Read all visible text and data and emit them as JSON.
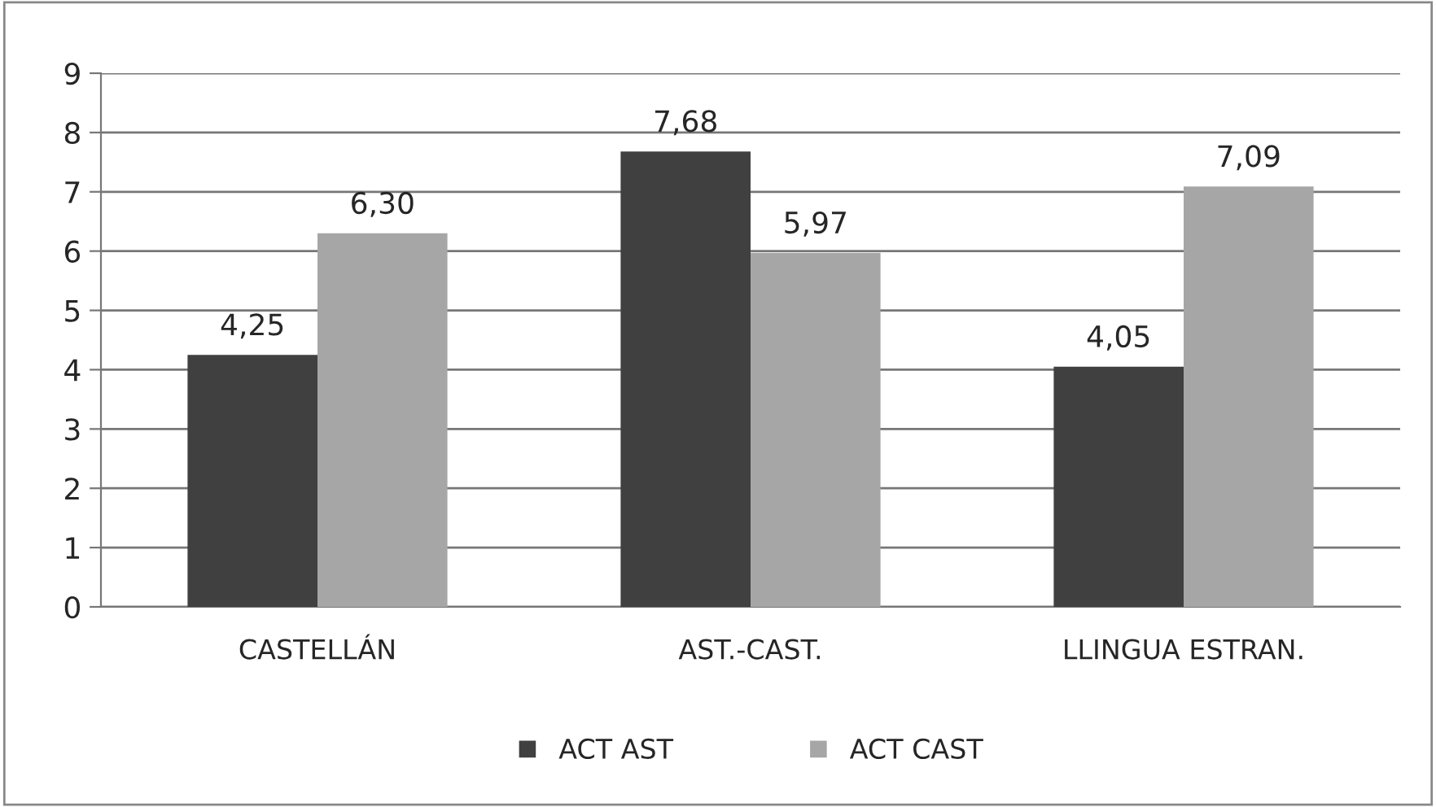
{
  "chart_data": {
    "type": "bar",
    "categories": [
      "CASTELLÁN",
      "AST.-CAST.",
      "LLINGUA ESTRAN."
    ],
    "series": [
      {
        "name": "ACT AST",
        "color": "#404040",
        "values": [
          4.25,
          7.68,
          4.05
        ],
        "value_labels": [
          "4,25",
          "7,68",
          "4,05"
        ]
      },
      {
        "name": "ACT CAST",
        "color": "#a6a6a6",
        "values": [
          6.3,
          5.97,
          7.09
        ],
        "value_labels": [
          "6,30",
          "5,97",
          "7,09"
        ]
      }
    ],
    "ylim": [
      0,
      9
    ],
    "yticks": [
      0,
      1,
      2,
      3,
      4,
      5,
      6,
      7,
      8,
      9
    ],
    "grid": "y",
    "legend": "bottom"
  }
}
